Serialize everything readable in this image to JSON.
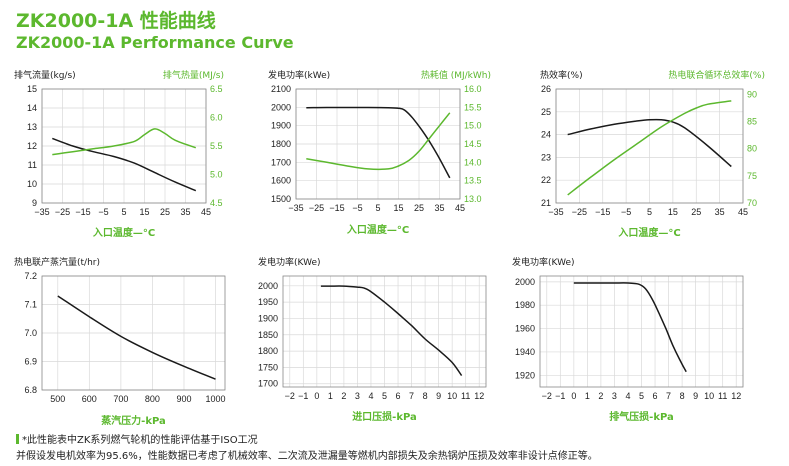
{
  "title_cn": "ZK2000-1A 性能曲线",
  "title_en": "ZK2000-1A Performance Curve",
  "colors": {
    "green": "#5cb82e",
    "black": "#1a1a1a",
    "grid": "#d9d9d9"
  },
  "footnote": {
    "line1": "*此性能表中ZK系列燃气轮机的性能评估基于ISO工况",
    "line2": "并假设发电机效率为95.6%，性能数据已考虑了机械效率、二次流及泄漏量等燃机内部损失及余热锅炉压损及效率非设计点修正等。"
  },
  "chart_data": [
    {
      "type": "line",
      "title": "",
      "xlabel": "入口温度—°C",
      "ylabel": "排气流量(kg/s)",
      "y2label": "排气热量(MJ/s)",
      "xticks": [
        -35,
        -25,
        -15,
        -5,
        5,
        15,
        25,
        35,
        45
      ],
      "xlim": [
        -35,
        45
      ],
      "yticks": [
        9,
        10,
        11,
        12,
        13,
        14,
        15
      ],
      "ylim": [
        9,
        15
      ],
      "y2ticks": [
        4.5,
        5.0,
        5.5,
        6.0,
        6.5
      ],
      "y2lim": [
        4.5,
        6.5
      ],
      "grid": true,
      "series": [
        {
          "axis": "left",
          "color": "#1a1a1a",
          "x": [
            -30,
            -20,
            -10,
            0,
            10,
            20,
            30,
            40
          ],
          "y": [
            12.4,
            12.0,
            11.7,
            11.45,
            11.1,
            10.6,
            10.1,
            9.65
          ]
        },
        {
          "axis": "right",
          "color": "#5cb82e",
          "x": [
            -30,
            -20,
            -10,
            0,
            10,
            15,
            20,
            25,
            30,
            40
          ],
          "y": [
            5.35,
            5.4,
            5.45,
            5.5,
            5.58,
            5.7,
            5.8,
            5.72,
            5.6,
            5.47
          ]
        }
      ]
    },
    {
      "type": "line",
      "title": "",
      "xlabel": "入口温度—°C",
      "ylabel": "发电功率(kWe)",
      "y2label": "热耗值 (MJ/kWh)",
      "xticks": [
        -35,
        -25,
        -15,
        -5,
        5,
        15,
        25,
        35,
        45
      ],
      "xlim": [
        -35,
        45
      ],
      "yticks": [
        1500,
        1600,
        1700,
        1800,
        1900,
        2000,
        2100
      ],
      "ylim": [
        1500,
        2100
      ],
      "y2ticks": [
        13.0,
        13.5,
        14.0,
        14.5,
        15.0,
        15.5,
        16.0
      ],
      "y2lim": [
        13.0,
        16.0
      ],
      "grid": true,
      "series": [
        {
          "axis": "left",
          "color": "#1a1a1a",
          "x": [
            -30,
            -20,
            -10,
            0,
            10,
            15,
            18,
            22,
            28,
            34,
            40
          ],
          "y": [
            1998,
            1999,
            1999,
            1999,
            1998,
            1995,
            1985,
            1940,
            1850,
            1740,
            1615
          ]
        },
        {
          "axis": "right",
          "color": "#5cb82e",
          "x": [
            -30,
            -20,
            -10,
            0,
            10,
            15,
            20,
            25,
            30,
            35,
            40
          ],
          "y": [
            14.1,
            14.0,
            13.9,
            13.82,
            13.82,
            13.9,
            14.05,
            14.3,
            14.65,
            15.0,
            15.35
          ]
        }
      ]
    },
    {
      "type": "line",
      "title": "",
      "xlabel": "入口温度—°C",
      "ylabel": "热效率(%)",
      "y2label": "热电联合循环总效率(%)",
      "xticks": [
        -35,
        -25,
        -15,
        -5,
        5,
        15,
        25,
        35,
        45
      ],
      "xlim": [
        -35,
        45
      ],
      "yticks": [
        21,
        22,
        23,
        24,
        25,
        26
      ],
      "ylim": [
        21,
        26
      ],
      "y2ticks": [
        70,
        75,
        80,
        85,
        90
      ],
      "y2lim": [
        70,
        91
      ],
      "grid": true,
      "series": [
        {
          "axis": "left",
          "color": "#1a1a1a",
          "x": [
            -30,
            -20,
            -10,
            0,
            5,
            10,
            15,
            20,
            30,
            40
          ],
          "y": [
            24.0,
            24.25,
            24.45,
            24.6,
            24.65,
            24.65,
            24.55,
            24.3,
            23.5,
            22.6
          ]
        },
        {
          "axis": "right",
          "color": "#5cb82e",
          "x": [
            -30,
            -20,
            -10,
            0,
            10,
            20,
            25,
            30,
            40
          ],
          "y": [
            71.5,
            74.8,
            78.0,
            81.0,
            84.0,
            86.5,
            87.5,
            88.2,
            88.8
          ]
        }
      ]
    },
    {
      "type": "line",
      "title": "",
      "xlabel": "蒸汽压力-kPa",
      "ylabel": "热电联产蒸汽量(t/hr)",
      "xticks": [
        500,
        600,
        700,
        800,
        900,
        1000
      ],
      "xlim": [
        450,
        1030
      ],
      "yticks": [
        6.8,
        6.9,
        7.0,
        7.1,
        7.2
      ],
      "ylim": [
        6.8,
        7.2
      ],
      "grid": true,
      "series": [
        {
          "axis": "left",
          "color": "#1a1a1a",
          "x": [
            500,
            600,
            700,
            800,
            900,
            1000
          ],
          "y": [
            7.13,
            7.057,
            6.988,
            6.932,
            6.883,
            6.838
          ]
        }
      ]
    },
    {
      "type": "line",
      "title": "",
      "xlabel": "进口压损-kPa",
      "ylabel": "发电功率(KWe)",
      "xticks": [
        -2,
        -1,
        0,
        1,
        2,
        3,
        4,
        5,
        6,
        7,
        8,
        9,
        10,
        11,
        12
      ],
      "xlim": [
        -2.5,
        12.5
      ],
      "yticks": [
        1700,
        1750,
        1800,
        1850,
        1900,
        1950,
        2000
      ],
      "ylim": [
        1690,
        2030
      ],
      "grid": true,
      "series": [
        {
          "axis": "left",
          "color": "#1a1a1a",
          "x": [
            0.3,
            1,
            2,
            3,
            3.5,
            4,
            5,
            6,
            7,
            8,
            9,
            10,
            10.7
          ],
          "y": [
            1999,
            1999,
            1999,
            1996,
            1993,
            1982,
            1950,
            1915,
            1878,
            1837,
            1803,
            1765,
            1725
          ]
        }
      ]
    },
    {
      "type": "line",
      "title": "",
      "xlabel": "排气压损-kPa",
      "ylabel": "发电功率(KWe)",
      "xticks": [
        -2,
        -1,
        0,
        1,
        2,
        3,
        4,
        5,
        6,
        7,
        8,
        9,
        10,
        11,
        12
      ],
      "xlim": [
        -2.5,
        12.5
      ],
      "yticks": [
        1920,
        1940,
        1960,
        1980,
        2000
      ],
      "ylim": [
        1910,
        2005
      ],
      "grid": true,
      "series": [
        {
          "axis": "left",
          "color": "#1a1a1a",
          "x": [
            0,
            1,
            2,
            3,
            4,
            4.8,
            5.3,
            5.8,
            6.3,
            6.8,
            7.3,
            7.8,
            8.3
          ],
          "y": [
            1999,
            1999,
            1999,
            1999,
            1999,
            1998,
            1994,
            1985,
            1973,
            1960,
            1946,
            1934,
            1923
          ]
        }
      ]
    }
  ]
}
